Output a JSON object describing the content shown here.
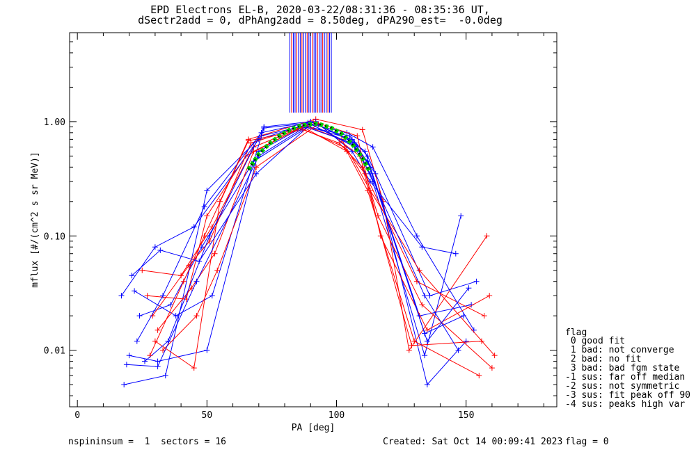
{
  "header": {
    "title_line1": "EPD Electrons EL-B, 2020-03-22/08:31:36 - 08:35:36 UT,",
    "title_line2": "dSectr2add = 0, dPhAng2add = 8.50deg, dPA290_est=  -0.0deg"
  },
  "footer": {
    "left": "nspininsum =  1  sectors = 16",
    "created": "Created: Sat Oct 14 00:09:41 2023",
    "flag": "flag = 0"
  },
  "legend": {
    "title": "flag",
    "items": [
      " 0 good fit",
      " 1 bad: not converge",
      " 2 bad: no fit",
      " 3 bad: bad fgm state",
      "-1 sus: far off median",
      "-2 sus: not symmetric",
      "-3 sus: fit peak off 90",
      "-4 sus: peaks high var"
    ]
  },
  "colors": {
    "blue": "#0000ff",
    "red": "#ff0000",
    "green": "#00cc00",
    "black": "#000000"
  },
  "chart_data": {
    "type": "line",
    "xlabel": "PA [deg]",
    "ylabel": "mflux [#/(cm^2 s sr MeV)]",
    "xlim": [
      -3,
      185
    ],
    "ylim": [
      0.0032,
      6.0
    ],
    "yscale": "log",
    "x_ticks": [
      0,
      50,
      100,
      150
    ],
    "x_tick_labels": [
      "0",
      "50",
      "100",
      "150"
    ],
    "y_ticks": [
      0.01,
      0.1,
      1.0
    ],
    "y_tick_labels": [
      "0.01",
      "0.10",
      "1.00"
    ],
    "series": [
      {
        "color": "blue",
        "x": [
          20,
          31,
          50,
          70,
          88,
          106,
          115,
          135,
          150
        ],
        "y": [
          0.009,
          0.008,
          0.01,
          0.55,
          0.92,
          0.7,
          0.35,
          0.005,
          0.012
        ]
      },
      {
        "color": "blue",
        "x": [
          18,
          34,
          50,
          71,
          90,
          108,
          114,
          134,
          148
        ],
        "y": [
          0.005,
          0.006,
          0.25,
          0.75,
          0.95,
          0.6,
          0.3,
          0.009,
          0.15
        ]
      },
      {
        "color": "red",
        "x": [
          25,
          40,
          52,
          68,
          87,
          104,
          112,
          130,
          155
        ],
        "y": [
          0.05,
          0.045,
          0.12,
          0.6,
          0.9,
          0.55,
          0.25,
          0.012,
          0.006
        ]
      },
      {
        "color": "red",
        "x": [
          30,
          45,
          55,
          66,
          92,
          110,
          118,
          128,
          158
        ],
        "y": [
          0.012,
          0.007,
          0.2,
          0.7,
          1.05,
          0.85,
          0.2,
          0.01,
          0.1
        ]
      },
      {
        "color": "blue",
        "x": [
          22,
          38,
          52,
          72,
          91,
          107,
          113,
          132,
          152
        ],
        "y": [
          0.033,
          0.02,
          0.03,
          0.88,
          0.98,
          0.65,
          0.4,
          0.02,
          0.025
        ]
      },
      {
        "color": "blue",
        "x": [
          24,
          36,
          48,
          68,
          89,
          105,
          112,
          136,
          154
        ],
        "y": [
          0.02,
          0.025,
          0.08,
          0.45,
          0.9,
          0.75,
          0.5,
          0.03,
          0.04
        ]
      },
      {
        "color": "red",
        "x": [
          27,
          42,
          50,
          65,
          86,
          103,
          111,
          131,
          157
        ],
        "y": [
          0.03,
          0.028,
          0.15,
          0.5,
          0.88,
          0.6,
          0.35,
          0.04,
          0.02
        ]
      },
      {
        "color": "red",
        "x": [
          33,
          46,
          54,
          69,
          93,
          109,
          116,
          133,
          160
        ],
        "y": [
          0.01,
          0.02,
          0.05,
          0.4,
          0.95,
          0.5,
          0.15,
          0.025,
          0.007
        ]
      },
      {
        "color": "blue",
        "x": [
          17,
          30,
          45,
          70,
          92,
          106,
          113,
          133,
          146
        ],
        "y": [
          0.03,
          0.08,
          0.12,
          0.7,
          1.0,
          0.55,
          0.3,
          0.08,
          0.07
        ]
      },
      {
        "color": "blue",
        "x": [
          21,
          32,
          47,
          69,
          90,
          104,
          114,
          131,
          153
        ],
        "y": [
          0.045,
          0.075,
          0.06,
          0.35,
          0.95,
          0.8,
          0.6,
          0.1,
          0.015
        ]
      },
      {
        "color": "red",
        "x": [
          29,
          43,
          51,
          67,
          88,
          102,
          113,
          132,
          161
        ],
        "y": [
          0.02,
          0.055,
          0.09,
          0.65,
          0.92,
          0.7,
          0.25,
          0.05,
          0.009
        ]
      },
      {
        "color": "red",
        "x": [
          31,
          44,
          53,
          68,
          91,
          108,
          117,
          135,
          159
        ],
        "y": [
          0.015,
          0.035,
          0.07,
          0.55,
          1.0,
          0.75,
          0.1,
          0.015,
          0.03
        ]
      },
      {
        "color": "blue",
        "x": [
          23,
          33,
          49,
          71,
          89,
          107,
          112,
          134,
          149
        ],
        "y": [
          0.012,
          0.03,
          0.18,
          0.8,
          0.98,
          0.6,
          0.45,
          0.014,
          0.02
        ]
      },
      {
        "color": "blue",
        "x": [
          26,
          35,
          51,
          72,
          90,
          105,
          111,
          135,
          151
        ],
        "y": [
          0.008,
          0.012,
          0.1,
          0.9,
          1.0,
          0.7,
          0.55,
          0.012,
          0.035
        ]
      },
      {
        "color": "red",
        "x": [
          28,
          41,
          49,
          66,
          87,
          101,
          110,
          129,
          156
        ],
        "y": [
          0.009,
          0.04,
          0.1,
          0.68,
          0.85,
          0.65,
          0.4,
          0.011,
          0.012
        ]
      },
      {
        "color": "blue",
        "x": [
          19,
          31,
          46,
          70,
          88,
          106,
          113,
          134,
          147
        ],
        "y": [
          0.0075,
          0.0072,
          0.04,
          0.5,
          0.9,
          0.65,
          0.35,
          0.03,
          0.01
        ]
      }
    ],
    "fit_curve": {
      "color": "green",
      "x": [
        66,
        70,
        74,
        78,
        82,
        86,
        90,
        92,
        94,
        98,
        102,
        106,
        110,
        113
      ],
      "y": [
        0.38,
        0.52,
        0.64,
        0.75,
        0.85,
        0.92,
        0.95,
        0.96,
        0.94,
        0.88,
        0.78,
        0.64,
        0.48,
        0.36
      ]
    },
    "marker_region": {
      "x_min": 82,
      "x_max": 98,
      "y_min": 1.2,
      "y_max": 6.0
    }
  }
}
